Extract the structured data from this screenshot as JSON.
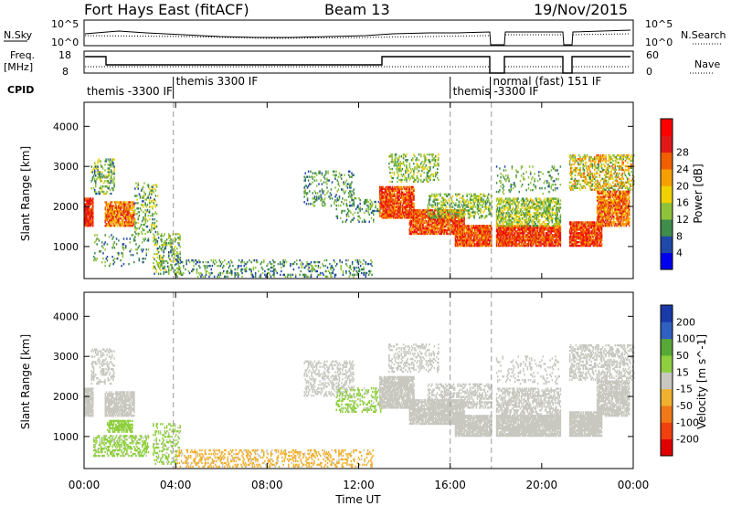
{
  "header": {
    "station": "Fort Hays East (fitACF)",
    "beam": "Beam 13",
    "date": "19/Nov/2015"
  },
  "strips": {
    "noise": {
      "left_label": "N.Sky",
      "right_label": "N.Search",
      "left_ticks": [
        "10^5",
        "10^0"
      ],
      "right_ticks": [
        "10^5",
        "10^0"
      ]
    },
    "freq": {
      "left_label": "Freq.",
      "left_unit": "[MHz]",
      "right_label": "Nave",
      "left_ticks": [
        "18",
        "8"
      ],
      "right_ticks": [
        "60",
        "0"
      ]
    },
    "cpid": {
      "label": "CPID",
      "segments": [
        {
          "label": "themis -3300 IF",
          "start_h": 0.0,
          "end_h": 3.9
        },
        {
          "label": "themis 3300 IF",
          "start_h": 3.9,
          "end_h": 16.0
        },
        {
          "label": "themis -3300 IF",
          "start_h": 16.0,
          "end_h": 17.75
        },
        {
          "label": "normal (fast) 151 IF",
          "start_h": 17.75,
          "end_h": 24.0
        }
      ]
    }
  },
  "colors": {
    "power": [
      "#0000ee",
      "#1f48a8",
      "#3f8c4c",
      "#8fc23b",
      "#f0d000",
      "#f5a000",
      "#f06000",
      "#e01818",
      "#ff0000"
    ],
    "velocity": [
      "#1a3aa8",
      "#3060c0",
      "#58a838",
      "#8fcf3f",
      "#c8c8c0",
      "#f0b030",
      "#f07818",
      "#f04010",
      "#e00000"
    ],
    "gray": "#c8c8c0"
  },
  "chart_data": [
    {
      "type": "heatmap",
      "name": "power",
      "xlabel": "",
      "ylabel": "Slant Range [km]",
      "xlim": [
        0,
        24
      ],
      "ylim": [
        200,
        4600
      ],
      "yticks": [
        "1000",
        "2000",
        "3000",
        "4000"
      ],
      "colorbar_label": "Power [dB]",
      "colorbar_ticks": [
        "4",
        "8",
        "12",
        "16",
        "20",
        "24",
        "28"
      ],
      "clim": [
        0,
        32
      ],
      "bands": [
        {
          "t0": 0.0,
          "t1": 0.4,
          "r0": 1500,
          "r1": 2200,
          "v0": 22,
          "v1": 30,
          "d": 0.9
        },
        {
          "t0": 0.3,
          "t1": 1.3,
          "r0": 2300,
          "r1": 3200,
          "v0": 6,
          "v1": 16,
          "d": 0.35
        },
        {
          "t0": 0.9,
          "t1": 2.2,
          "r0": 1500,
          "r1": 2100,
          "v0": 16,
          "v1": 28,
          "d": 0.8
        },
        {
          "t0": 2.2,
          "t1": 3.2,
          "r0": 1300,
          "r1": 2600,
          "v0": 6,
          "v1": 16,
          "d": 0.25
        },
        {
          "t0": 0.4,
          "t1": 2.8,
          "r0": 500,
          "r1": 1300,
          "v0": 4,
          "v1": 14,
          "d": 0.12
        },
        {
          "t0": 3.0,
          "t1": 4.2,
          "r0": 300,
          "r1": 1300,
          "v0": 6,
          "v1": 16,
          "d": 0.3
        },
        {
          "t0": 4.0,
          "t1": 12.6,
          "r0": 230,
          "r1": 650,
          "v0": 4,
          "v1": 14,
          "d": 0.22
        },
        {
          "t0": 9.6,
          "t1": 11.8,
          "r0": 2000,
          "r1": 2900,
          "v0": 5,
          "v1": 14,
          "d": 0.22
        },
        {
          "t0": 11.0,
          "t1": 13.0,
          "r0": 1600,
          "r1": 2200,
          "v0": 6,
          "v1": 14,
          "d": 0.2
        },
        {
          "t0": 12.9,
          "t1": 14.4,
          "r0": 1700,
          "r1": 2500,
          "v0": 18,
          "v1": 30,
          "d": 0.85
        },
        {
          "t0": 13.3,
          "t1": 15.5,
          "r0": 2600,
          "r1": 3300,
          "v0": 8,
          "v1": 16,
          "d": 0.3
        },
        {
          "t0": 14.2,
          "t1": 16.6,
          "r0": 1300,
          "r1": 1900,
          "v0": 18,
          "v1": 30,
          "d": 0.85
        },
        {
          "t0": 15.0,
          "t1": 17.8,
          "r0": 1700,
          "r1": 2300,
          "v0": 8,
          "v1": 16,
          "d": 0.45
        },
        {
          "t0": 16.2,
          "t1": 17.8,
          "r0": 1000,
          "r1": 1500,
          "v0": 18,
          "v1": 30,
          "d": 0.9
        },
        {
          "t0": 18.0,
          "t1": 20.8,
          "r0": 1000,
          "r1": 1500,
          "v0": 20,
          "v1": 30,
          "d": 0.9
        },
        {
          "t0": 18.0,
          "t1": 20.8,
          "r0": 1500,
          "r1": 2200,
          "v0": 8,
          "v1": 18,
          "d": 0.55
        },
        {
          "t0": 18.0,
          "t1": 20.8,
          "r0": 2300,
          "r1": 3000,
          "v0": 6,
          "v1": 14,
          "d": 0.15
        },
        {
          "t0": 21.2,
          "t1": 22.6,
          "r0": 1000,
          "r1": 1600,
          "v0": 20,
          "v1": 30,
          "d": 0.9
        },
        {
          "t0": 22.4,
          "t1": 23.8,
          "r0": 1500,
          "r1": 2400,
          "v0": 16,
          "v1": 28,
          "d": 0.8
        },
        {
          "t0": 21.2,
          "t1": 24.0,
          "r0": 2400,
          "r1": 3300,
          "v0": 8,
          "v1": 24,
          "d": 0.45
        }
      ]
    },
    {
      "type": "heatmap",
      "name": "velocity",
      "xlabel": "Time UT",
      "ylabel": "Slant Range [km]",
      "xlim": [
        0,
        24
      ],
      "ylim": [
        200,
        4600
      ],
      "xticks": [
        "00:00",
        "04:00",
        "08:00",
        "12:00",
        "16:00",
        "20:00",
        "00:00"
      ],
      "yticks": [
        "1000",
        "2000",
        "3000",
        "4000"
      ],
      "colorbar_label": "Velocity [m s^-1]",
      "colorbar_ticks": [
        "200",
        "100",
        "50",
        "15",
        "-15",
        "-50",
        "-100",
        "-200"
      ],
      "clim": [
        250,
        -250
      ],
      "bands": [
        {
          "t0": 0.0,
          "t1": 0.4,
          "r0": 1500,
          "r1": 2200,
          "v0": -10,
          "v1": 10,
          "d": 0.9
        },
        {
          "t0": 0.3,
          "t1": 1.3,
          "r0": 2300,
          "r1": 3200,
          "v0": -10,
          "v1": 10,
          "d": 0.35
        },
        {
          "t0": 0.9,
          "t1": 2.2,
          "r0": 1500,
          "r1": 2100,
          "v0": -10,
          "v1": 10,
          "d": 0.8
        },
        {
          "t0": 1.0,
          "t1": 2.1,
          "r0": 1100,
          "r1": 1400,
          "v0": 30,
          "v1": 70,
          "d": 0.7
        },
        {
          "t0": 0.4,
          "t1": 2.8,
          "r0": 500,
          "r1": 1000,
          "v0": 20,
          "v1": 80,
          "d": 0.45
        },
        {
          "t0": 3.0,
          "t1": 4.2,
          "r0": 300,
          "r1": 1300,
          "v0": 20,
          "v1": 70,
          "d": 0.3
        },
        {
          "t0": 4.0,
          "t1": 12.6,
          "r0": 230,
          "r1": 650,
          "v0": -80,
          "v1": -20,
          "d": 0.28
        },
        {
          "t0": 9.6,
          "t1": 11.8,
          "r0": 2000,
          "r1": 2900,
          "v0": -10,
          "v1": 10,
          "d": 0.35
        },
        {
          "t0": 11.0,
          "t1": 13.0,
          "r0": 1600,
          "r1": 2200,
          "v0": 20,
          "v1": 70,
          "d": 0.3
        },
        {
          "t0": 12.9,
          "t1": 14.4,
          "r0": 1700,
          "r1": 2500,
          "v0": -10,
          "v1": 10,
          "d": 0.85
        },
        {
          "t0": 13.3,
          "t1": 15.5,
          "r0": 2600,
          "r1": 3300,
          "v0": -10,
          "v1": 10,
          "d": 0.3
        },
        {
          "t0": 14.2,
          "t1": 16.6,
          "r0": 1300,
          "r1": 1900,
          "v0": -10,
          "v1": 10,
          "d": 0.85
        },
        {
          "t0": 15.0,
          "t1": 17.8,
          "r0": 1700,
          "r1": 2300,
          "v0": -10,
          "v1": 10,
          "d": 0.45
        },
        {
          "t0": 16.2,
          "t1": 17.8,
          "r0": 1000,
          "r1": 1500,
          "v0": -10,
          "v1": 10,
          "d": 0.9
        },
        {
          "t0": 18.0,
          "t1": 20.8,
          "r0": 1000,
          "r1": 1500,
          "v0": -10,
          "v1": 10,
          "d": 0.9
        },
        {
          "t0": 18.0,
          "t1": 20.8,
          "r0": 1500,
          "r1": 2200,
          "v0": -10,
          "v1": 10,
          "d": 0.55
        },
        {
          "t0": 18.0,
          "t1": 20.8,
          "r0": 2300,
          "r1": 3000,
          "v0": -10,
          "v1": 10,
          "d": 0.15
        },
        {
          "t0": 21.2,
          "t1": 22.6,
          "r0": 1000,
          "r1": 1600,
          "v0": -10,
          "v1": 10,
          "d": 0.9
        },
        {
          "t0": 22.4,
          "t1": 23.8,
          "r0": 1500,
          "r1": 2400,
          "v0": -10,
          "v1": 10,
          "d": 0.8
        },
        {
          "t0": 21.2,
          "t1": 24.0,
          "r0": 2400,
          "r1": 3300,
          "v0": -10,
          "v1": 10,
          "d": 0.45
        }
      ]
    }
  ]
}
